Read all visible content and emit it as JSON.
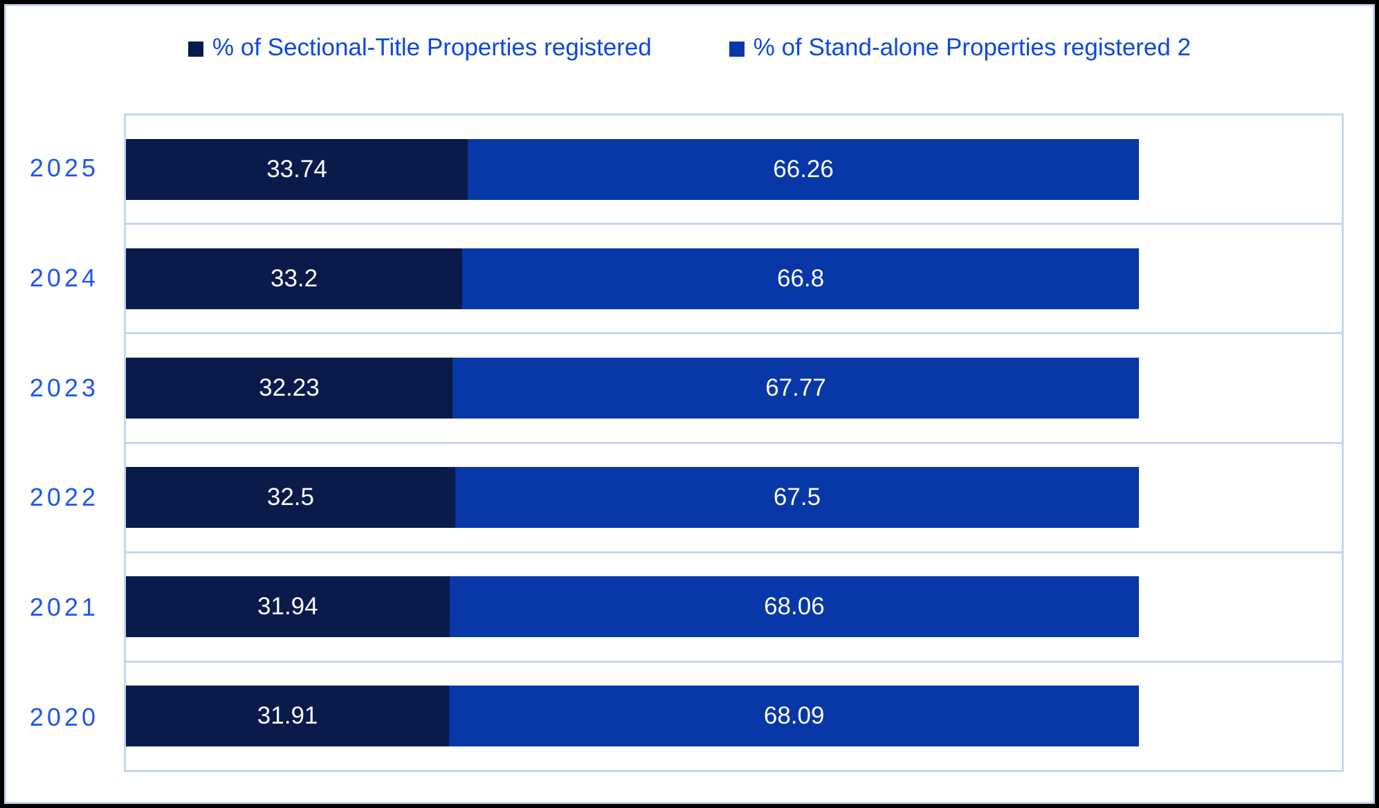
{
  "colors": {
    "series_sectional": "#0a1a4b",
    "series_standalone": "#0837a7",
    "legend_text": "#0d47dc",
    "category_text": "#1c55f0",
    "gridline": "#c7d5f2",
    "value_label_text": "#ffffff",
    "frame_border": "#000000",
    "background": "#ffffff"
  },
  "legend": {
    "position": "top-center",
    "items": [
      {
        "label": "% of Sectional-Title Properties registered",
        "marker": "square",
        "color": "#0a1a4b"
      },
      {
        "label": "% of Stand-alone Properties registered 2",
        "marker": "square",
        "color": "#0837a7"
      }
    ]
  },
  "chart_data": {
    "type": "bar",
    "orientation": "horizontal-stacked",
    "title": "",
    "xlabel": "",
    "ylabel": "",
    "categories": [
      "2025",
      "2024",
      "2023",
      "2022",
      "2021",
      "2020"
    ],
    "series": [
      {
        "name": "% of Sectional-Title Properties registered",
        "color": "#0a1a4b",
        "values": [
          33.74,
          33.2,
          32.23,
          32.5,
          31.94,
          31.91
        ],
        "labels": [
          "33.74",
          "33.2",
          "32.23",
          "32.5",
          "31.94",
          "31.91"
        ]
      },
      {
        "name": "% of Stand-alone Properties registered 2",
        "color": "#0837a7",
        "values": [
          66.26,
          66.8,
          67.77,
          67.5,
          68.06,
          68.09
        ],
        "labels": [
          "66.26",
          "66.8",
          "67.77",
          "67.5",
          "68.06",
          "68.09"
        ]
      }
    ],
    "stack_total": 100,
    "xlim": [
      0,
      120
    ],
    "grid": "horizontal band separators",
    "legend_position": "top",
    "value_labels": "inside, white, centered per segment",
    "axis_tick_labels_visible": false
  }
}
